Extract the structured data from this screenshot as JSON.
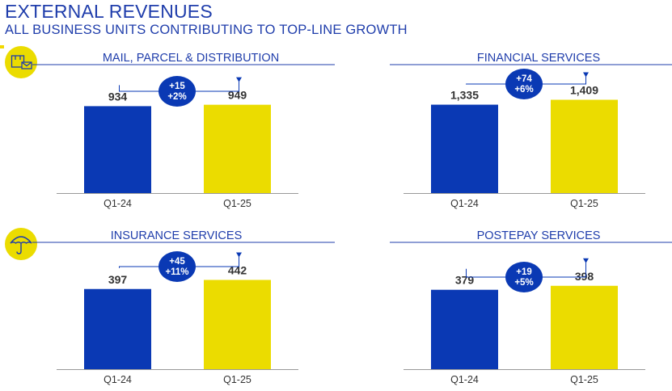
{
  "header": {
    "title": "EXTERNAL REVENUES",
    "subtitle": "ALL BUSINESS UNITS CONTRIBUTING TO TOP-LINE GROWTH"
  },
  "colors": {
    "brand_blue": "#0a39b4",
    "text_blue": "#1f3dab",
    "accent_yellow": "#ebdc00",
    "value_text": "#333333",
    "axis": "#999999"
  },
  "icons": {
    "mail": "parcel-mail-icon",
    "insurance": "umbrella-icon"
  },
  "chart_data": [
    {
      "type": "bar",
      "title": "MAIL, PARCEL & DISTRIBUTION",
      "categories": [
        "Q1-24",
        "Q1-25"
      ],
      "values": [
        934,
        949
      ],
      "value_labels": [
        "934",
        "949"
      ],
      "delta_labels": [
        "+15",
        "+2%"
      ],
      "ylim": [
        0,
        1085
      ]
    },
    {
      "type": "bar",
      "title": "FINANCIAL SERVICES",
      "categories": [
        "Q1-24",
        "Q1-25"
      ],
      "values": [
        1335,
        1409
      ],
      "value_labels": [
        "1,335",
        "1,409"
      ],
      "delta_labels": [
        "+74",
        "+6%"
      ],
      "ylim": [
        0,
        1525
      ]
    },
    {
      "type": "bar",
      "title": "INSURANCE SERVICES",
      "categories": [
        "Q1-24",
        "Q1-25"
      ],
      "values": [
        397,
        442
      ],
      "value_labels": [
        "397",
        "442"
      ],
      "delta_labels": [
        "+45",
        "+11%"
      ],
      "ylim": [
        0,
        500
      ]
    },
    {
      "type": "bar",
      "title": "POSTEPAY SERVICES",
      "categories": [
        "Q1-24",
        "Q1-25"
      ],
      "values": [
        379,
        398
      ],
      "value_labels": [
        "379",
        "398"
      ],
      "delta_labels": [
        "+19",
        "+5%"
      ],
      "ylim": [
        0,
        482
      ]
    }
  ]
}
